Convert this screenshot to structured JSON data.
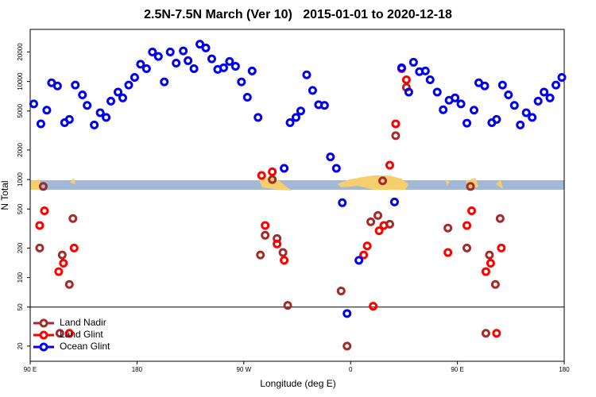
{
  "chart_data": {
    "type": "scatter",
    "title": "2.5N-7.5N March (Ver 10)   2015-01-01 to 2020-12-18",
    "x_label": "Longitude (deg E)",
    "y_label": "N Total",
    "xlim": [
      90,
      540
    ],
    "ylim": [
      14,
      34000
    ],
    "log_y": true,
    "xticks": [
      {
        "value": 90,
        "label": "90 E"
      },
      {
        "value": 180,
        "label": "180"
      },
      {
        "value": 270,
        "label": "90 W"
      },
      {
        "value": 360,
        "label": "0"
      },
      {
        "value": 450,
        "label": "90 E"
      },
      {
        "value": 540,
        "label": "180"
      }
    ],
    "yticks": [
      20,
      50,
      100,
      200,
      500,
      1000,
      2000,
      5000,
      10000,
      20000
    ],
    "reference_line": 50,
    "legend": "lower left",
    "series": [
      {
        "name": "Land Nadir",
        "color": "#a52a2a",
        "x": [
          98,
          101,
          117,
          123,
          126,
          115,
          284,
          288,
          294,
          298,
          303,
          307,
          352,
          357,
          377,
          383,
          387,
          393,
          398,
          407,
          442,
          458,
          461,
          477,
          482,
          486,
          474
        ],
        "values": [
          200,
          850,
          170,
          85,
          400,
          27,
          170,
          270,
          1000,
          250,
          180,
          52,
          73,
          20,
          370,
          430,
          970,
          350,
          2800,
          8700,
          320,
          200,
          850,
          170,
          85,
          400,
          27
        ]
      },
      {
        "name": "Land Glint",
        "color": "#ff0000",
        "x": [
          98,
          102,
          114,
          118,
          123,
          127,
          285,
          288,
          294,
          298,
          304,
          371,
          374,
          379,
          384,
          388,
          393,
          398,
          403,
          407,
          442,
          458,
          462,
          474,
          478,
          483,
          487
        ],
        "values": [
          340,
          480,
          115,
          140,
          27,
          200,
          1100,
          340,
          1200,
          220,
          150,
          170,
          210,
          51,
          300,
          340,
          1400,
          3700,
          13500,
          10400,
          180,
          340,
          480,
          115,
          140,
          27,
          200
        ]
      },
      {
        "name": "Ocean Glint",
        "color": "#0000ee",
        "x": [
          93,
          99,
          104,
          108,
          113,
          119,
          123,
          128,
          134,
          138,
          144,
          149,
          154,
          158,
          164,
          168,
          173,
          178,
          183,
          188,
          193,
          198,
          203,
          208,
          213,
          219,
          223,
          228,
          233,
          238,
          243,
          248,
          253,
          258,
          263,
          268,
          273,
          277,
          282,
          304,
          309,
          314,
          318,
          323,
          328,
          333,
          338,
          343,
          348,
          353,
          357,
          367,
          397,
          403,
          409,
          413,
          418,
          423,
          427,
          433,
          438,
          443,
          448,
          453,
          458,
          464,
          468,
          473,
          479,
          483,
          488,
          493,
          498,
          503,
          508,
          513,
          518,
          523,
          528,
          533,
          538
        ],
        "values": [
          5900,
          3700,
          5100,
          9700,
          9000,
          3800,
          4100,
          9200,
          7300,
          5700,
          3600,
          4800,
          4300,
          6300,
          7800,
          6800,
          9200,
          11000,
          15000,
          13500,
          20000,
          18000,
          9900,
          20000,
          15400,
          20500,
          16300,
          13500,
          24000,
          22000,
          17000,
          13300,
          13800,
          16000,
          14300,
          9900,
          6900,
          12800,
          4300,
          1300,
          3800,
          4300,
          5000,
          11700,
          8100,
          5800,
          5700,
          1700,
          1300,
          580,
          43,
          150,
          590,
          13800,
          7800,
          15700,
          12600,
          12800,
          10400,
          7800,
          5150,
          6440,
          6800,
          5900,
          3760,
          5100,
          9700,
          9000,
          3800,
          4100,
          9200,
          7300,
          5700,
          3600,
          4800,
          4300,
          6300,
          7800,
          6800,
          9200,
          11000
        ]
      }
    ]
  }
}
